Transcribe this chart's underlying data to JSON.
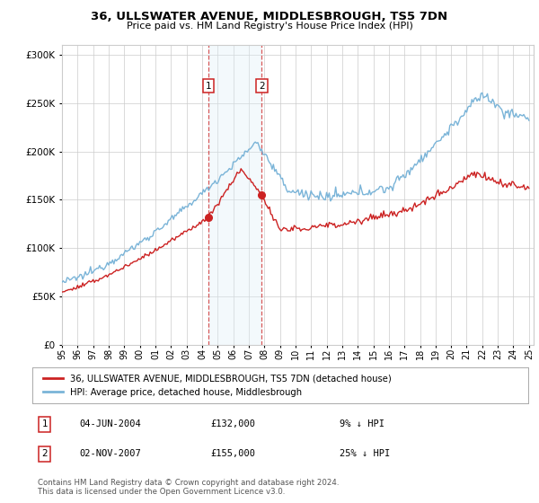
{
  "title": "36, ULLSWATER AVENUE, MIDDLESBROUGH, TS5 7DN",
  "subtitle": "Price paid vs. HM Land Registry's House Price Index (HPI)",
  "legend_line1": "36, ULLSWATER AVENUE, MIDDLESBROUGH, TS5 7DN (detached house)",
  "legend_line2": "HPI: Average price, detached house, Middlesbrough",
  "transaction1_date": "04-JUN-2004",
  "transaction1_price": "£132,000",
  "transaction1_hpi": "9% ↓ HPI",
  "transaction2_date": "02-NOV-2007",
  "transaction2_price": "£155,000",
  "transaction2_hpi": "25% ↓ HPI",
  "footer": "Contains HM Land Registry data © Crown copyright and database right 2024.\nThis data is licensed under the Open Government Licence v3.0.",
  "hpi_color": "#7ab4d8",
  "price_color": "#cc2222",
  "shade_color": "#ddeef7",
  "dashed_color": "#cc2222",
  "box_color": "#cc2222",
  "ylim_min": 0,
  "ylim_max": 310000,
  "transaction1_year": 2004.42,
  "transaction2_year": 2007.84,
  "background_color": "#ffffff",
  "grid_color": "#cccccc"
}
